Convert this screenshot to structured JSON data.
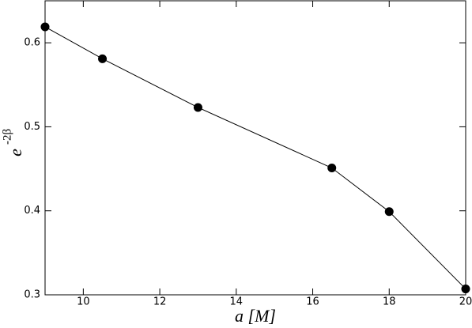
{
  "chart_data": {
    "type": "line",
    "xlabel": "a [M]",
    "ylabel": {
      "base": "e",
      "exponent": "-2β"
    },
    "x": [
      9,
      10.5,
      13,
      16.5,
      18,
      20
    ],
    "series": [
      {
        "color": "#000000",
        "values": [
          0.619,
          0.581,
          0.523,
          0.451,
          0.399,
          0.307
        ]
      }
    ],
    "xlim": [
      9,
      20
    ],
    "xticks": [
      10,
      12,
      14,
      16,
      18,
      20
    ],
    "ylim": [
      0.3,
      0.65
    ],
    "yticks": [
      0.3,
      0.4,
      0.5,
      0.6
    ],
    "grid": false
  }
}
